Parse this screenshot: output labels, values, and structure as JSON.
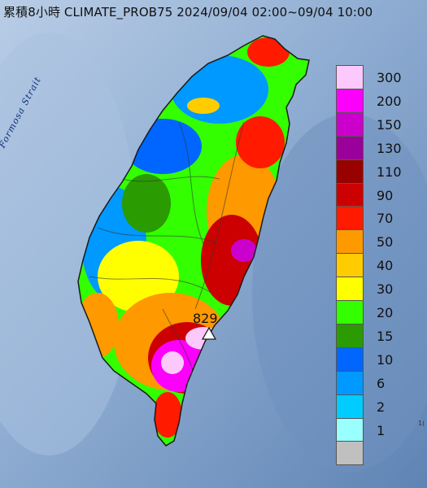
{
  "title": "累積8小時 CLIMATE_PROB75 2024/09/04 02:00~09/04 10:00",
  "sea_label": "Formosa Strait",
  "max_value_label": "829",
  "corner_mark": "1(",
  "legend": {
    "items": [
      {
        "label": "300",
        "color": "#fdc9fd"
      },
      {
        "label": "200",
        "color": "#fb00fb"
      },
      {
        "label": "150",
        "color": "#cc00cc"
      },
      {
        "label": "130",
        "color": "#9a009a"
      },
      {
        "label": "110",
        "color": "#990000"
      },
      {
        "label": "90",
        "color": "#cc0000"
      },
      {
        "label": "70",
        "color": "#ff1a00"
      },
      {
        "label": "50",
        "color": "#ff9900"
      },
      {
        "label": "40",
        "color": "#ffcc00"
      },
      {
        "label": "30",
        "color": "#ffff00"
      },
      {
        "label": "20",
        "color": "#33ff00"
      },
      {
        "label": "15",
        "color": "#2a9b00"
      },
      {
        "label": "10",
        "color": "#0066ff"
      },
      {
        "label": "6",
        "color": "#0099ff"
      },
      {
        "label": "2",
        "color": "#00ccff"
      },
      {
        "label": "1",
        "color": "#99ffff"
      },
      {
        "label": "",
        "color": "#c0c0c0"
      }
    ]
  }
}
